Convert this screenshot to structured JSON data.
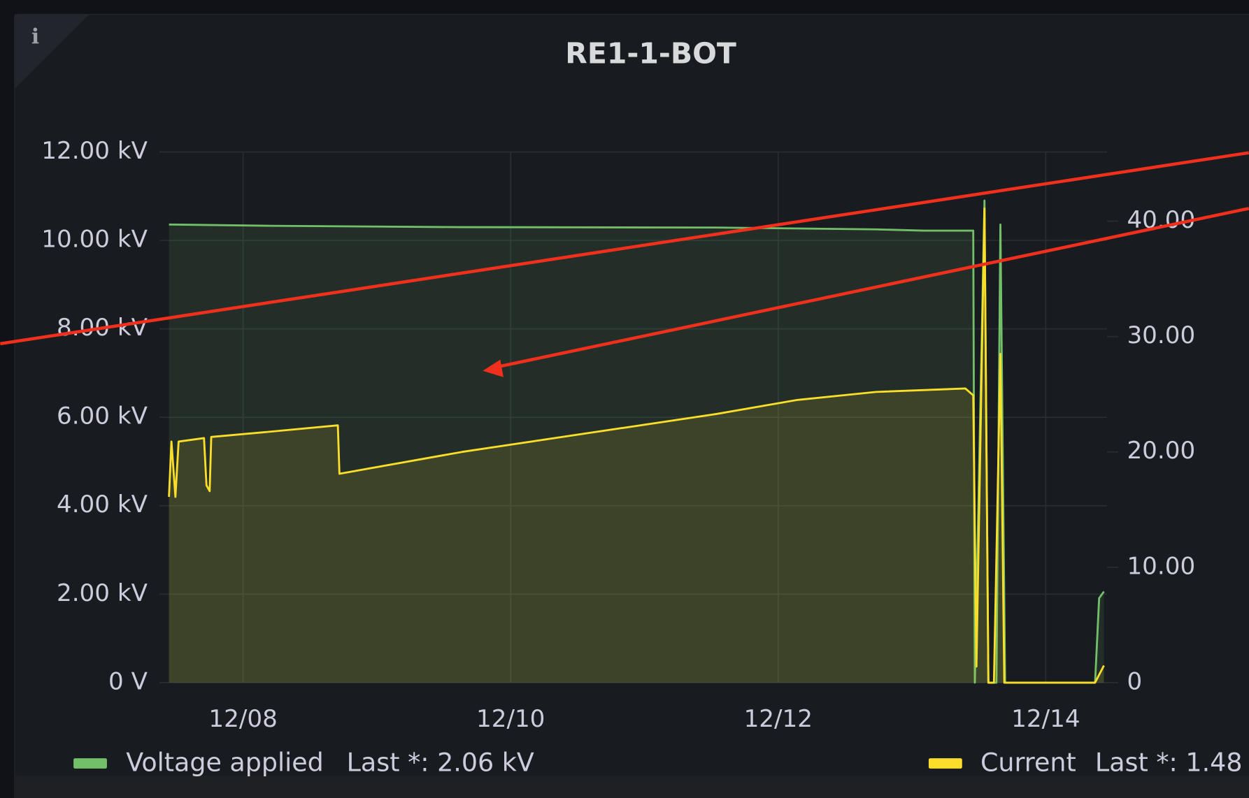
{
  "chart_data": {
    "type": "line",
    "title": "RE1-1-BOT",
    "xlim": [
      7.375,
      14.458
    ],
    "xticks": [
      {
        "value": 8,
        "label": "12/08"
      },
      {
        "value": 10,
        "label": "12/10"
      },
      {
        "value": 12,
        "label": "12/12"
      },
      {
        "value": 14,
        "label": "12/14"
      }
    ],
    "ylim": [
      0,
      12
    ],
    "yticks": [
      {
        "value": 0,
        "label": "0 V"
      },
      {
        "value": 2,
        "label": "2.00 kV"
      },
      {
        "value": 4,
        "label": "4.00 kV"
      },
      {
        "value": 6,
        "label": "6.00 kV"
      },
      {
        "value": 8,
        "label": "8.00 kV"
      },
      {
        "value": 10,
        "label": "10.00 kV"
      },
      {
        "value": 12,
        "label": "12.00 kV"
      }
    ],
    "y2lim": [
      0,
      46
    ],
    "y2ticks": [
      0,
      {
        "value": 10,
        "label": "10.00"
      },
      {
        "value": 20,
        "label": "20.00"
      },
      {
        "value": 30,
        "label": "30.00"
      },
      {
        "value": 40,
        "label": "40.00"
      }
    ],
    "grid": true,
    "series": [
      {
        "name": "Voltage applied",
        "color": "#73bf69",
        "legend_stat": "Last *: 2.06 kV",
        "x": [
          7.446,
          8.2,
          9.637,
          11.542,
          12.732,
          13.09,
          13.458,
          13.47,
          13.542,
          13.571,
          13.631,
          13.661,
          13.696,
          14.369,
          14.399,
          14.435
        ],
        "values": [
          10.36,
          10.33,
          10.3,
          10.29,
          10.25,
          10.22,
          10.22,
          0,
          10.9,
          0,
          0,
          10.36,
          0,
          0,
          1.91,
          2.06
        ]
      },
      {
        "name": "Current",
        "color": "#fade2a",
        "axis": "y2",
        "legend_stat": "Last *: 1.48",
        "x": [
          7.446,
          7.464,
          7.494,
          7.518,
          7.708,
          7.726,
          7.75,
          7.762,
          8.149,
          8.708,
          8.72,
          9.637,
          11.542,
          12.137,
          12.732,
          13.399,
          13.458,
          13.482,
          13.542,
          13.571,
          13.613,
          13.661,
          13.69,
          14.369,
          14.435
        ],
        "values": [
          16.1,
          20.9,
          16.1,
          20.9,
          21.2,
          17.1,
          16.6,
          21.3,
          21.7,
          22.3,
          18.1,
          20.0,
          23.3,
          24.5,
          25.2,
          25.5,
          24.9,
          1.4,
          41.1,
          0,
          0,
          28.5,
          0,
          0,
          1.48
        ]
      }
    ]
  }
}
